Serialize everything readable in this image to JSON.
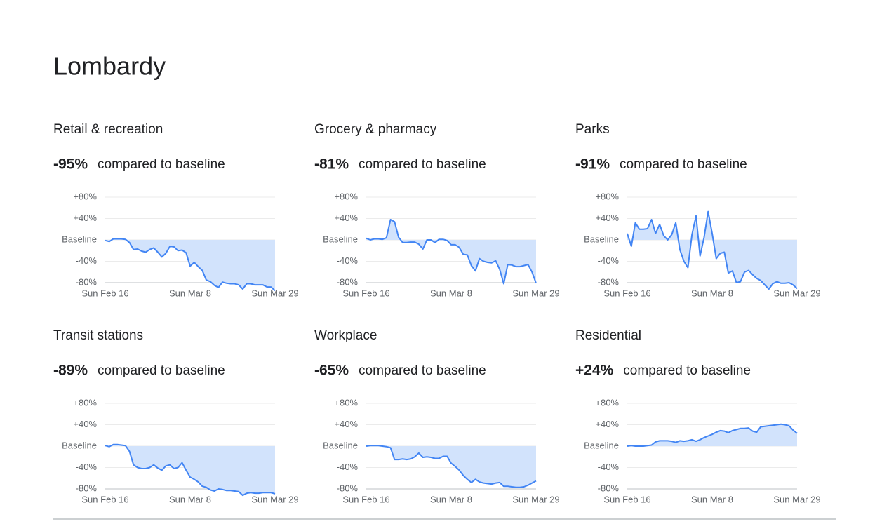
{
  "title": "Lombardy",
  "chart_data": [
    {
      "type": "line",
      "title": "Retail & recreation",
      "summary": "-95%",
      "summary_text": "compared to baseline",
      "color": "#4285f4",
      "fill_color": "#d2e3fc",
      "categories": [
        "Sun Feb 16",
        null,
        null,
        null,
        null,
        null,
        null,
        null,
        null,
        null,
        null,
        null,
        null,
        null,
        null,
        null,
        null,
        null,
        null,
        null,
        null,
        "Sun Mar 8",
        null,
        null,
        null,
        null,
        null,
        null,
        null,
        null,
        null,
        null,
        null,
        null,
        null,
        null,
        null,
        null,
        null,
        null,
        null,
        null,
        "Sun Mar 29"
      ],
      "values": [
        -1,
        -3,
        2,
        2,
        2,
        1,
        -5,
        -18,
        -17,
        -21,
        -23,
        -18,
        -15,
        -23,
        -32,
        -25,
        -12,
        -13,
        -20,
        -19,
        -24,
        -49,
        -42,
        -50,
        -57,
        -75,
        -78,
        -85,
        -89,
        -79,
        -81,
        -82,
        -82,
        -84,
        -92,
        -82,
        -82,
        -84,
        -84,
        -84,
        -88,
        -88,
        -95
      ],
      "ylim": [
        -80,
        80
      ],
      "yticks": [
        {
          "value": 80,
          "label": "+80%"
        },
        {
          "value": 40,
          "label": "+40%"
        },
        {
          "value": 0,
          "label": "Baseline"
        },
        {
          "value": -40,
          "label": "-40%"
        },
        {
          "value": -80,
          "label": "-80%"
        }
      ],
      "grid": true
    },
    {
      "type": "line",
      "title": "Grocery & pharmacy",
      "summary": "-81%",
      "summary_text": "compared to baseline",
      "color": "#4285f4",
      "fill_color": "#d2e3fc",
      "categories": [
        "Sun Feb 16",
        null,
        null,
        null,
        null,
        null,
        null,
        null,
        null,
        null,
        null,
        null,
        null,
        null,
        null,
        null,
        null,
        null,
        null,
        null,
        null,
        "Sun Mar 8",
        null,
        null,
        null,
        null,
        null,
        null,
        null,
        null,
        null,
        null,
        null,
        null,
        null,
        null,
        null,
        null,
        null,
        null,
        null,
        null,
        "Sun Mar 29"
      ],
      "values": [
        3,
        0,
        2,
        2,
        1,
        4,
        38,
        34,
        5,
        -5,
        -5,
        -4,
        -4,
        -8,
        -17,
        0,
        0,
        -5,
        1,
        1,
        -1,
        -9,
        -9,
        -14,
        -27,
        -28,
        -48,
        -58,
        -35,
        -40,
        -42,
        -43,
        -39,
        -55,
        -82,
        -46,
        -47,
        -50,
        -50,
        -48,
        -46,
        -60,
        -81
      ],
      "ylim": [
        -80,
        80
      ],
      "yticks": [
        {
          "value": 80,
          "label": "+80%"
        },
        {
          "value": 40,
          "label": "+40%"
        },
        {
          "value": 0,
          "label": "Baseline"
        },
        {
          "value": -40,
          "label": "-40%"
        },
        {
          "value": -80,
          "label": "-80%"
        }
      ],
      "grid": true
    },
    {
      "type": "line",
      "title": "Parks",
      "summary": "-91%",
      "summary_text": "compared to baseline",
      "color": "#4285f4",
      "fill_color": "#d2e3fc",
      "categories": [
        "Sun Feb 16",
        null,
        null,
        null,
        null,
        null,
        null,
        null,
        null,
        null,
        null,
        null,
        null,
        null,
        null,
        null,
        null,
        null,
        null,
        null,
        null,
        "Sun Mar 8",
        null,
        null,
        null,
        null,
        null,
        null,
        null,
        null,
        null,
        null,
        null,
        null,
        null,
        null,
        null,
        null,
        null,
        null,
        null,
        null,
        "Sun Mar 29"
      ],
      "values": [
        12,
        -12,
        32,
        20,
        20,
        21,
        38,
        12,
        29,
        8,
        0,
        10,
        32,
        -18,
        -40,
        -52,
        10,
        45,
        -30,
        5,
        53,
        12,
        -35,
        -25,
        -23,
        -62,
        -58,
        -80,
        -78,
        -60,
        -57,
        -65,
        -72,
        -76,
        -84,
        -92,
        -82,
        -78,
        -81,
        -81,
        -80,
        -84,
        -91
      ],
      "ylim": [
        -80,
        80
      ],
      "yticks": [
        {
          "value": 80,
          "label": "+80%"
        },
        {
          "value": 40,
          "label": "+40%"
        },
        {
          "value": 0,
          "label": "Baseline"
        },
        {
          "value": -40,
          "label": "-40%"
        },
        {
          "value": -80,
          "label": "-80%"
        }
      ],
      "grid": true
    },
    {
      "type": "line",
      "title": "Transit stations",
      "summary": "-89%",
      "summary_text": "compared to baseline",
      "color": "#4285f4",
      "fill_color": "#d2e3fc",
      "categories": [
        "Sun Feb 16",
        null,
        null,
        null,
        null,
        null,
        null,
        null,
        null,
        null,
        null,
        null,
        null,
        null,
        null,
        null,
        null,
        null,
        null,
        null,
        null,
        "Sun Mar 8",
        null,
        null,
        null,
        null,
        null,
        null,
        null,
        null,
        null,
        null,
        null,
        null,
        null,
        null,
        null,
        null,
        null,
        null,
        null,
        null,
        "Sun Mar 29"
      ],
      "values": [
        1,
        -1,
        3,
        3,
        2,
        1,
        -10,
        -35,
        -40,
        -42,
        -42,
        -40,
        -35,
        -41,
        -45,
        -37,
        -35,
        -42,
        -40,
        -31,
        -45,
        -58,
        -62,
        -67,
        -75,
        -77,
        -82,
        -84,
        -80,
        -81,
        -83,
        -83,
        -84,
        -85,
        -92,
        -88,
        -87,
        -88,
        -88,
        -87,
        -87,
        -87,
        -89
      ],
      "ylim": [
        -80,
        80
      ],
      "yticks": [
        {
          "value": 80,
          "label": "+80%"
        },
        {
          "value": 40,
          "label": "+40%"
        },
        {
          "value": 0,
          "label": "Baseline"
        },
        {
          "value": -40,
          "label": "-40%"
        },
        {
          "value": -80,
          "label": "-80%"
        }
      ],
      "grid": true
    },
    {
      "type": "line",
      "title": "Workplace",
      "summary": "-65%",
      "summary_text": "compared to baseline",
      "color": "#4285f4",
      "fill_color": "#d2e3fc",
      "categories": [
        "Sun Feb 16",
        null,
        null,
        null,
        null,
        null,
        null,
        null,
        null,
        null,
        null,
        null,
        null,
        null,
        null,
        null,
        null,
        null,
        null,
        null,
        null,
        "Sun Mar 8",
        null,
        null,
        null,
        null,
        null,
        null,
        null,
        null,
        null,
        null,
        null,
        null,
        null,
        null,
        null,
        null,
        null,
        null,
        null,
        null,
        "Sun Mar 29"
      ],
      "values": [
        0,
        1,
        1,
        1,
        0,
        -1,
        -3,
        -25,
        -25,
        -24,
        -25,
        -24,
        -20,
        -13,
        -21,
        -20,
        -21,
        -23,
        -23,
        -19,
        -19,
        -32,
        -38,
        -45,
        -55,
        -62,
        -68,
        -62,
        -67,
        -69,
        -70,
        -71,
        -69,
        -68,
        -75,
        -75,
        -76,
        -77,
        -77,
        -76,
        -73,
        -69,
        -65
      ],
      "ylim": [
        -80,
        80
      ],
      "yticks": [
        {
          "value": 80,
          "label": "+80%"
        },
        {
          "value": 40,
          "label": "+40%"
        },
        {
          "value": 0,
          "label": "Baseline"
        },
        {
          "value": -40,
          "label": "-40%"
        },
        {
          "value": -80,
          "label": "-80%"
        }
      ],
      "grid": true
    },
    {
      "type": "line",
      "title": "Residential",
      "summary": "+24%",
      "summary_text": "compared to baseline",
      "color": "#4285f4",
      "fill_color": "#d2e3fc",
      "categories": [
        "Sun Feb 16",
        null,
        null,
        null,
        null,
        null,
        null,
        null,
        null,
        null,
        null,
        null,
        null,
        null,
        null,
        null,
        null,
        null,
        null,
        null,
        null,
        "Sun Mar 8",
        null,
        null,
        null,
        null,
        null,
        null,
        null,
        null,
        null,
        null,
        null,
        null,
        null,
        null,
        null,
        null,
        null,
        null,
        null,
        null,
        "Sun Mar 29"
      ],
      "values": [
        0,
        1,
        0,
        0,
        0,
        1,
        2,
        8,
        10,
        10,
        10,
        9,
        7,
        10,
        9,
        10,
        12,
        9,
        12,
        16,
        19,
        22,
        26,
        29,
        28,
        25,
        29,
        31,
        33,
        33,
        34,
        28,
        26,
        36,
        37,
        38,
        39,
        40,
        41,
        40,
        38,
        30,
        24
      ],
      "ylim": [
        -80,
        80
      ],
      "yticks": [
        {
          "value": 80,
          "label": "+80%"
        },
        {
          "value": 40,
          "label": "+40%"
        },
        {
          "value": 0,
          "label": "Baseline"
        },
        {
          "value": -40,
          "label": "-40%"
        },
        {
          "value": -80,
          "label": "-80%"
        }
      ],
      "grid": true
    }
  ]
}
